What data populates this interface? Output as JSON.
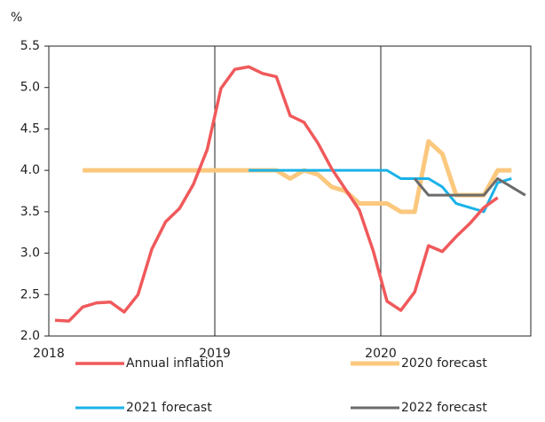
{
  "chart_data": {
    "type": "line",
    "y_label": "%",
    "categories": [
      "2018",
      null,
      null,
      null,
      null,
      null,
      null,
      null,
      null,
      null,
      null,
      null,
      "2019",
      null,
      null,
      null,
      null,
      null,
      null,
      null,
      null,
      null,
      null,
      null,
      "2020",
      null,
      null,
      null,
      null,
      null,
      null,
      null,
      null,
      null,
      null
    ],
    "ylim": [
      2,
      5.5
    ],
    "yticks": [
      {
        "value": 2,
        "label": "2.0"
      },
      2.5,
      {
        "value": 3,
        "label": "3.0"
      },
      3.5,
      {
        "value": 4,
        "label": "4.0"
      },
      4.5,
      {
        "value": 5,
        "label": "5.0"
      },
      5.5
    ],
    "xgrid": true,
    "series": [
      {
        "name": "2020 forecast",
        "color": "#fbc87e",
        "width": 5,
        "values": [
          null,
          null,
          4.0,
          4.0,
          4.0,
          4.0,
          4.0,
          4.0,
          4.0,
          4.0,
          4.0,
          4.0,
          4.0,
          4.0,
          4.0,
          4.0,
          4.0,
          3.9,
          4.0,
          3.95,
          3.8,
          3.75,
          3.6,
          3.6,
          3.6,
          3.5,
          3.5,
          4.35,
          4.2,
          3.7,
          3.7,
          3.7,
          4.0,
          4.0,
          null
        ]
      },
      {
        "name": "2021 forecast",
        "color": "#1ab2e8",
        "width": 3,
        "values": [
          null,
          null,
          null,
          null,
          null,
          null,
          null,
          null,
          null,
          null,
          null,
          null,
          null,
          null,
          4.0,
          4.0,
          4.0,
          4.0,
          4.0,
          4.0,
          4.0,
          4.0,
          4.0,
          4.0,
          4.0,
          3.9,
          3.9,
          3.9,
          3.8,
          3.6,
          3.55,
          3.5,
          3.85,
          3.9,
          null
        ]
      },
      {
        "name": "2022 forecast",
        "color": "#6b6b6b",
        "width": 3,
        "values": [
          null,
          null,
          null,
          null,
          null,
          null,
          null,
          null,
          null,
          null,
          null,
          null,
          null,
          null,
          null,
          null,
          null,
          null,
          null,
          null,
          null,
          null,
          null,
          null,
          null,
          null,
          3.9,
          3.7,
          3.7,
          3.7,
          3.7,
          3.7,
          3.9,
          3.8,
          3.7
        ]
      },
      {
        "name": "Annual inflation",
        "color": "#f0595b",
        "width": 3.5,
        "values": [
          2.19,
          2.18,
          2.35,
          2.4,
          2.41,
          2.29,
          2.5,
          3.05,
          3.38,
          3.54,
          3.83,
          4.25,
          4.99,
          5.22,
          5.25,
          5.17,
          5.13,
          4.66,
          4.58,
          4.33,
          4.02,
          3.77,
          3.52,
          3.03,
          2.42,
          2.31,
          2.53,
          3.09,
          3.02,
          3.2,
          3.36,
          3.55,
          3.67,
          null,
          null
        ]
      }
    ],
    "legend_order": [
      3,
      0,
      1,
      2
    ]
  }
}
